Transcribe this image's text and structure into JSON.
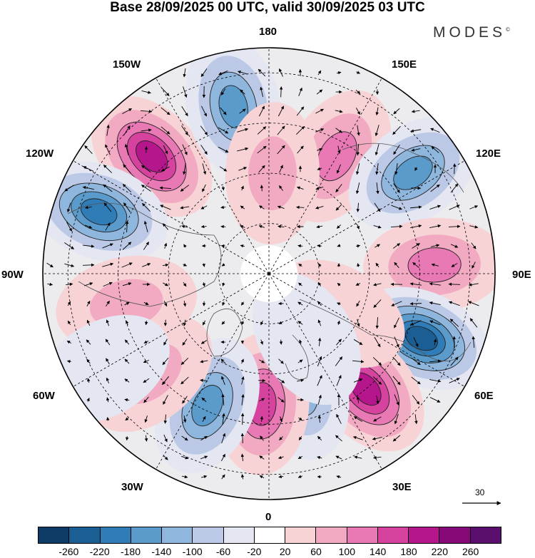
{
  "title": "Base 28/09/2025 00 UTC, valid 30/09/2025 03 UTC",
  "brand": "MODES",
  "brand_mark": "©",
  "longitude_labels": {
    "lon_180": "180",
    "lon_150e": "150E",
    "lon_120e": "120E",
    "lon_90e": "90E",
    "lon_60e": "60E",
    "lon_30e": "30E",
    "lon_0": "0",
    "lon_30w": "30W",
    "lon_60w": "60W",
    "lon_90w": "90W",
    "lon_120w": "120W",
    "lon_150w": "150W"
  },
  "reference_vector": {
    "label": "30"
  },
  "colorbar": {
    "ticks": [
      "-260",
      "-220",
      "-180",
      "-140",
      "-100",
      "-60",
      "-20",
      "20",
      "60",
      "100",
      "140",
      "180",
      "220",
      "260"
    ],
    "colors": [
      "#0d3b66",
      "#1a5e93",
      "#2f7cb6",
      "#5a9bcb",
      "#8fb6dc",
      "#bcc9e6",
      "#e4e6f2",
      "#ffffff",
      "#f8d3d6",
      "#f1aac1",
      "#e879b4",
      "#d5439f",
      "#b5168b",
      "#86097a",
      "#5a0f6e"
    ]
  },
  "anomalies": [
    {
      "lon": -135,
      "colat": 33,
      "value": 210
    },
    {
      "lon": -168,
      "colat": 34,
      "value": -160
    },
    {
      "lon": -110,
      "colat": 36,
      "value": -190
    },
    {
      "lon": 150,
      "colat": 27,
      "value": 110
    },
    {
      "lon": 125,
      "colat": 35,
      "value": -170
    },
    {
      "lon": 93,
      "colat": 33,
      "value": 130
    },
    {
      "lon": 67,
      "colat": 33,
      "value": -250
    },
    {
      "lon": 40,
      "colat": 30,
      "value": 200
    },
    {
      "lon": 15,
      "colat": 24,
      "value": -120
    },
    {
      "lon": -3,
      "colat": 26,
      "value": 170
    },
    {
      "lon": -25,
      "colat": 29,
      "value": -160
    },
    {
      "lon": -50,
      "colat": 31,
      "value": 70
    },
    {
      "lon": -78,
      "colat": 29,
      "value": 60
    },
    {
      "lon": 178,
      "colat": 20,
      "value": 60
    },
    {
      "lon": 60,
      "colat": 16,
      "value": 40
    },
    {
      "lon": 30,
      "colat": 15,
      "value": -50
    },
    {
      "lon": -60,
      "colat": 38,
      "value": -40
    }
  ]
}
